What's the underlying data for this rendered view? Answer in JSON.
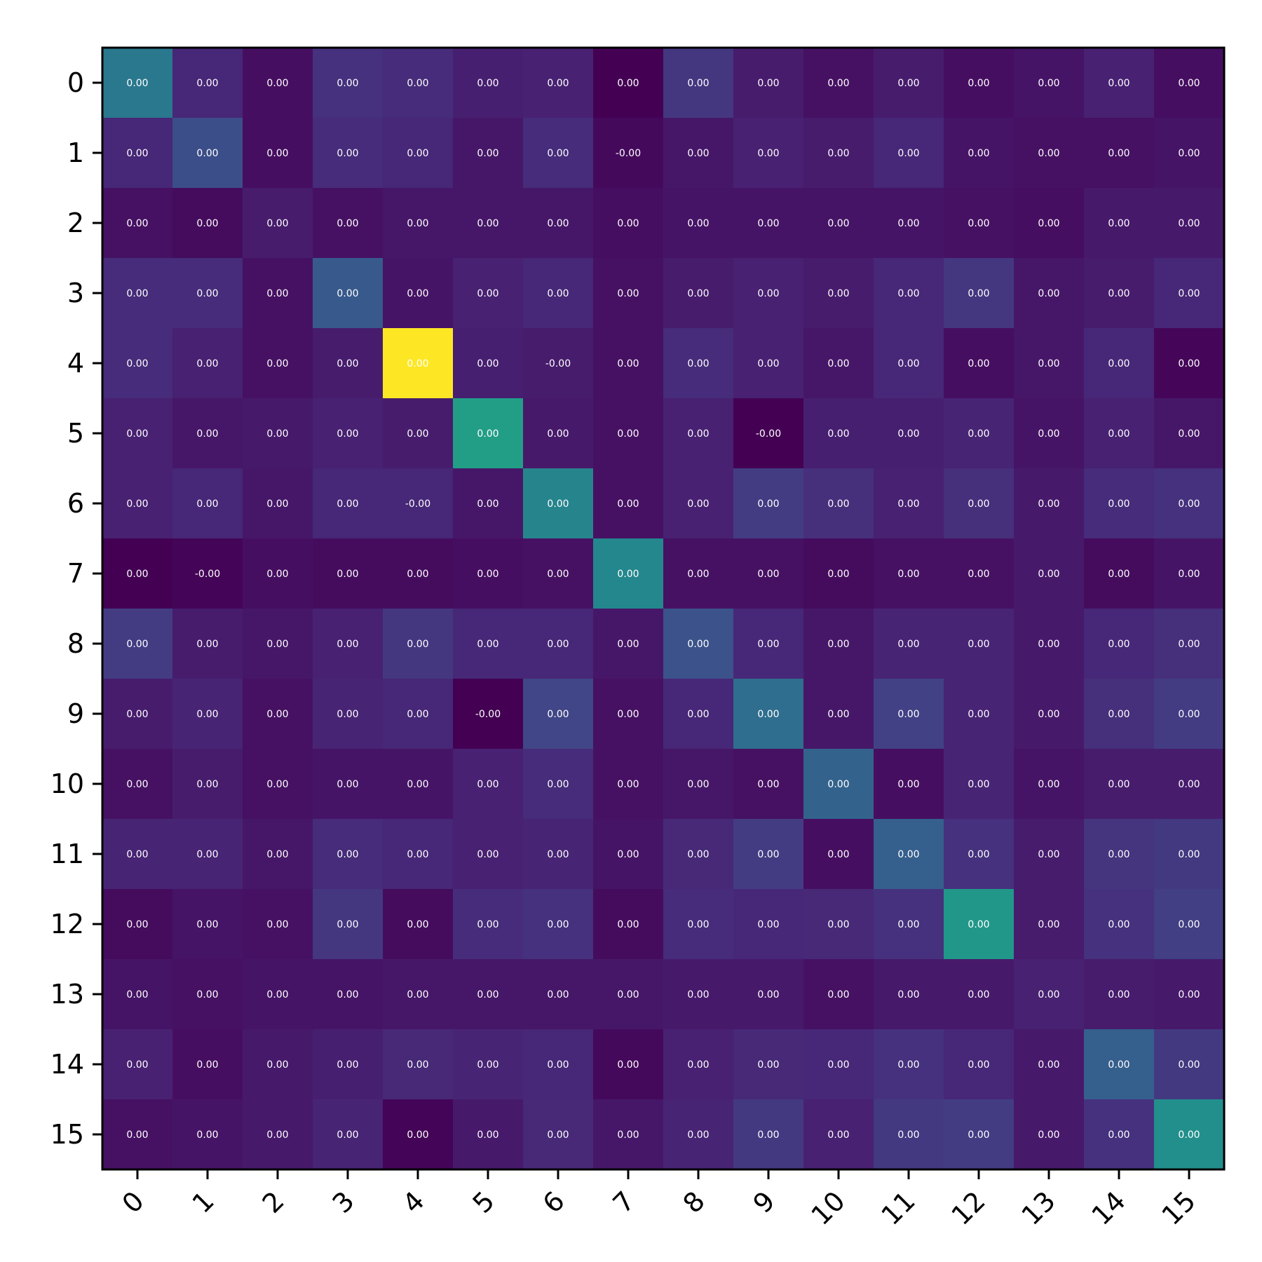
{
  "chart_data": {
    "type": "heatmap",
    "colormap": "viridis",
    "x_categories": [
      "0",
      "1",
      "2",
      "3",
      "4",
      "5",
      "6",
      "7",
      "8",
      "9",
      "10",
      "11",
      "12",
      "13",
      "14",
      "15"
    ],
    "y_categories": [
      "0",
      "1",
      "2",
      "3",
      "4",
      "5",
      "6",
      "7",
      "8",
      "9",
      "10",
      "11",
      "12",
      "13",
      "14",
      "15"
    ],
    "cell_labels": [
      [
        "0.00",
        "0.00",
        "0.00",
        "0.00",
        "0.00",
        "0.00",
        "0.00",
        "0.00",
        "0.00",
        "0.00",
        "0.00",
        "0.00",
        "0.00",
        "0.00",
        "0.00",
        "0.00"
      ],
      [
        "0.00",
        "0.00",
        "0.00",
        "0.00",
        "0.00",
        "0.00",
        "0.00",
        "-0.00",
        "0.00",
        "0.00",
        "0.00",
        "0.00",
        "0.00",
        "0.00",
        "0.00",
        "0.00"
      ],
      [
        "0.00",
        "0.00",
        "0.00",
        "0.00",
        "0.00",
        "0.00",
        "0.00",
        "0.00",
        "0.00",
        "0.00",
        "0.00",
        "0.00",
        "0.00",
        "0.00",
        "0.00",
        "0.00"
      ],
      [
        "0.00",
        "0.00",
        "0.00",
        "0.00",
        "0.00",
        "0.00",
        "0.00",
        "0.00",
        "0.00",
        "0.00",
        "0.00",
        "0.00",
        "0.00",
        "0.00",
        "0.00",
        "0.00"
      ],
      [
        "0.00",
        "0.00",
        "0.00",
        "0.00",
        "0.00",
        "0.00",
        "-0.00",
        "0.00",
        "0.00",
        "0.00",
        "0.00",
        "0.00",
        "0.00",
        "0.00",
        "0.00",
        "0.00"
      ],
      [
        "0.00",
        "0.00",
        "0.00",
        "0.00",
        "0.00",
        "0.00",
        "0.00",
        "0.00",
        "0.00",
        "-0.00",
        "0.00",
        "0.00",
        "0.00",
        "0.00",
        "0.00",
        "0.00"
      ],
      [
        "0.00",
        "0.00",
        "0.00",
        "0.00",
        "-0.00",
        "0.00",
        "0.00",
        "0.00",
        "0.00",
        "0.00",
        "0.00",
        "0.00",
        "0.00",
        "0.00",
        "0.00",
        "0.00"
      ],
      [
        "0.00",
        "-0.00",
        "0.00",
        "0.00",
        "0.00",
        "0.00",
        "0.00",
        "0.00",
        "0.00",
        "0.00",
        "0.00",
        "0.00",
        "0.00",
        "0.00",
        "0.00",
        "0.00"
      ],
      [
        "0.00",
        "0.00",
        "0.00",
        "0.00",
        "0.00",
        "0.00",
        "0.00",
        "0.00",
        "0.00",
        "0.00",
        "0.00",
        "0.00",
        "0.00",
        "0.00",
        "0.00",
        "0.00"
      ],
      [
        "0.00",
        "0.00",
        "0.00",
        "0.00",
        "0.00",
        "-0.00",
        "0.00",
        "0.00",
        "0.00",
        "0.00",
        "0.00",
        "0.00",
        "0.00",
        "0.00",
        "0.00",
        "0.00"
      ],
      [
        "0.00",
        "0.00",
        "0.00",
        "0.00",
        "0.00",
        "0.00",
        "0.00",
        "0.00",
        "0.00",
        "0.00",
        "0.00",
        "0.00",
        "0.00",
        "0.00",
        "0.00",
        "0.00"
      ],
      [
        "0.00",
        "0.00",
        "0.00",
        "0.00",
        "0.00",
        "0.00",
        "0.00",
        "0.00",
        "0.00",
        "0.00",
        "0.00",
        "0.00",
        "0.00",
        "0.00",
        "0.00",
        "0.00"
      ],
      [
        "0.00",
        "0.00",
        "0.00",
        "0.00",
        "0.00",
        "0.00",
        "0.00",
        "0.00",
        "0.00",
        "0.00",
        "0.00",
        "0.00",
        "0.00",
        "0.00",
        "0.00",
        "0.00"
      ],
      [
        "0.00",
        "0.00",
        "0.00",
        "0.00",
        "0.00",
        "0.00",
        "0.00",
        "0.00",
        "0.00",
        "0.00",
        "0.00",
        "0.00",
        "0.00",
        "0.00",
        "0.00",
        "0.00"
      ],
      [
        "0.00",
        "0.00",
        "0.00",
        "0.00",
        "0.00",
        "0.00",
        "0.00",
        "0.00",
        "0.00",
        "0.00",
        "0.00",
        "0.00",
        "0.00",
        "0.00",
        "0.00",
        "0.00"
      ],
      [
        "0.00",
        "0.00",
        "0.00",
        "0.00",
        "0.00",
        "0.00",
        "0.00",
        "0.00",
        "0.00",
        "0.00",
        "0.00",
        "0.00",
        "0.00",
        "0.00",
        "0.00",
        "0.00"
      ]
    ],
    "intensity": [
      [
        0.5,
        0.14,
        0.05,
        0.18,
        0.16,
        0.11,
        0.12,
        0.0,
        0.2,
        0.1,
        0.06,
        0.1,
        0.05,
        0.07,
        0.12,
        0.05
      ],
      [
        0.14,
        0.3,
        0.05,
        0.16,
        0.14,
        0.08,
        0.16,
        0.03,
        0.08,
        0.12,
        0.1,
        0.14,
        0.07,
        0.06,
        0.06,
        0.07
      ],
      [
        0.06,
        0.04,
        0.1,
        0.06,
        0.08,
        0.08,
        0.08,
        0.05,
        0.07,
        0.07,
        0.07,
        0.07,
        0.06,
        0.05,
        0.09,
        0.09
      ],
      [
        0.16,
        0.16,
        0.06,
        0.35,
        0.07,
        0.12,
        0.14,
        0.06,
        0.1,
        0.12,
        0.1,
        0.14,
        0.2,
        0.08,
        0.1,
        0.14
      ],
      [
        0.16,
        0.12,
        0.06,
        0.1,
        1.0,
        0.11,
        0.1,
        0.06,
        0.16,
        0.12,
        0.08,
        0.14,
        0.05,
        0.08,
        0.14,
        0.02
      ],
      [
        0.12,
        0.08,
        0.09,
        0.12,
        0.1,
        0.7,
        0.09,
        0.06,
        0.12,
        0.0,
        0.11,
        0.11,
        0.13,
        0.07,
        0.12,
        0.08
      ],
      [
        0.12,
        0.14,
        0.08,
        0.14,
        0.14,
        0.08,
        0.56,
        0.06,
        0.12,
        0.22,
        0.17,
        0.12,
        0.17,
        0.09,
        0.16,
        0.18
      ],
      [
        0.0,
        0.01,
        0.05,
        0.04,
        0.04,
        0.05,
        0.06,
        0.58,
        0.06,
        0.06,
        0.04,
        0.06,
        0.06,
        0.09,
        0.04,
        0.07
      ],
      [
        0.22,
        0.1,
        0.08,
        0.12,
        0.2,
        0.14,
        0.14,
        0.08,
        0.32,
        0.14,
        0.08,
        0.13,
        0.13,
        0.09,
        0.14,
        0.17
      ],
      [
        0.1,
        0.13,
        0.06,
        0.13,
        0.14,
        0.0,
        0.26,
        0.06,
        0.14,
        0.45,
        0.08,
        0.24,
        0.13,
        0.09,
        0.17,
        0.22
      ],
      [
        0.06,
        0.1,
        0.06,
        0.07,
        0.07,
        0.12,
        0.16,
        0.06,
        0.08,
        0.06,
        0.4,
        0.05,
        0.13,
        0.07,
        0.1,
        0.1
      ],
      [
        0.13,
        0.13,
        0.08,
        0.16,
        0.14,
        0.12,
        0.13,
        0.07,
        0.15,
        0.22,
        0.05,
        0.38,
        0.18,
        0.1,
        0.19,
        0.21
      ],
      [
        0.04,
        0.07,
        0.06,
        0.2,
        0.04,
        0.16,
        0.18,
        0.04,
        0.16,
        0.14,
        0.15,
        0.18,
        0.66,
        0.1,
        0.18,
        0.23
      ],
      [
        0.07,
        0.06,
        0.07,
        0.07,
        0.08,
        0.08,
        0.08,
        0.08,
        0.09,
        0.09,
        0.06,
        0.09,
        0.09,
        0.12,
        0.1,
        0.09
      ],
      [
        0.12,
        0.05,
        0.09,
        0.11,
        0.15,
        0.13,
        0.14,
        0.03,
        0.12,
        0.15,
        0.14,
        0.18,
        0.14,
        0.09,
        0.38,
        0.21
      ],
      [
        0.06,
        0.07,
        0.09,
        0.13,
        0.01,
        0.09,
        0.15,
        0.08,
        0.13,
        0.21,
        0.12,
        0.21,
        0.22,
        0.09,
        0.18,
        0.62
      ]
    ]
  }
}
